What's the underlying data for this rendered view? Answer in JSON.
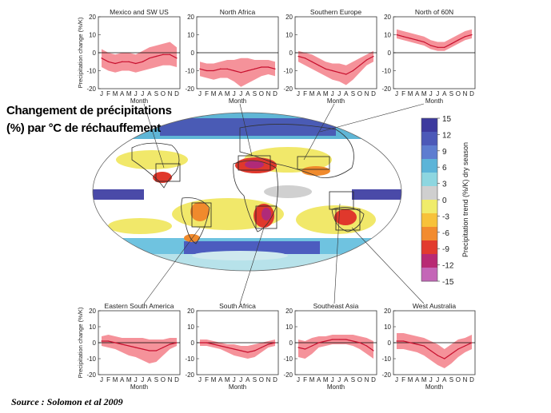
{
  "headline_line1": "Changement de précipitations",
  "headline_line2": "(%) par °C de réchauffement",
  "source": "Source : Solomon et al 2009",
  "colors": {
    "band": "#f4868f",
    "line": "#c8102e",
    "zero": "#000000"
  },
  "chart_data": [
    {
      "type": "line",
      "title": "Mexico and SW US",
      "xlabel": "Month",
      "ylabel": "Precipitation change (%/K)",
      "x": [
        "J",
        "F",
        "M",
        "A",
        "M",
        "J",
        "J",
        "A",
        "S",
        "O",
        "N",
        "D"
      ],
      "ylim": [
        -20,
        20
      ],
      "yticks": [
        -20,
        -10,
        0,
        10,
        20
      ],
      "series": [
        {
          "values": [
            -3,
            -5,
            -6,
            -5,
            -5,
            -6,
            -5,
            -3,
            -2,
            -1,
            -1,
            -3
          ],
          "lower": [
            -8,
            -10,
            -11,
            -10,
            -10,
            -11,
            -10,
            -9,
            -8,
            -7,
            -7,
            -8
          ],
          "upper": [
            2,
            0,
            -1,
            0,
            0,
            -1,
            1,
            3,
            4,
            5,
            6,
            3
          ]
        }
      ]
    },
    {
      "type": "line",
      "title": "North Africa",
      "xlabel": "Month",
      "ylabel": "",
      "x": [
        "J",
        "F",
        "M",
        "A",
        "M",
        "J",
        "J",
        "A",
        "S",
        "O",
        "N",
        "D"
      ],
      "ylim": [
        -20,
        20
      ],
      "yticks": [
        -20,
        -10,
        0,
        10,
        20
      ],
      "series": [
        {
          "values": [
            -9,
            -10,
            -10,
            -9,
            -9,
            -10,
            -11,
            -10,
            -9,
            -8,
            -8,
            -9
          ],
          "lower": [
            -13,
            -14,
            -15,
            -14,
            -14,
            -16,
            -19,
            -17,
            -15,
            -13,
            -12,
            -13
          ],
          "upper": [
            -5,
            -6,
            -6,
            -5,
            -4,
            -4,
            -3,
            -3,
            -4,
            -4,
            -4,
            -5
          ]
        }
      ]
    },
    {
      "type": "line",
      "title": "Southern Europe",
      "xlabel": "Month",
      "ylabel": "",
      "x": [
        "J",
        "F",
        "M",
        "A",
        "M",
        "J",
        "J",
        "A",
        "S",
        "O",
        "N",
        "D"
      ],
      "ylim": [
        -20,
        20
      ],
      "yticks": [
        -20,
        -10,
        0,
        10,
        20
      ],
      "series": [
        {
          "values": [
            -2,
            -3,
            -5,
            -7,
            -9,
            -10,
            -11,
            -12,
            -10,
            -7,
            -4,
            -2
          ],
          "lower": [
            -5,
            -7,
            -9,
            -11,
            -13,
            -15,
            -16,
            -18,
            -15,
            -11,
            -7,
            -5
          ],
          "upper": [
            1,
            0,
            -1,
            -3,
            -5,
            -6,
            -6,
            -7,
            -5,
            -3,
            -1,
            1
          ]
        }
      ]
    },
    {
      "type": "line",
      "title": "North of 60N",
      "xlabel": "Month",
      "ylabel": "",
      "x": [
        "J",
        "F",
        "M",
        "A",
        "M",
        "J",
        "J",
        "A",
        "S",
        "O",
        "N",
        "D"
      ],
      "ylim": [
        -20,
        20
      ],
      "yticks": [
        -20,
        -10,
        0,
        10,
        20
      ],
      "series": [
        {
          "values": [
            10,
            9,
            8,
            7,
            6,
            4,
            3,
            3,
            5,
            7,
            9,
            10
          ],
          "lower": [
            8,
            7,
            6,
            5,
            4,
            2,
            1,
            1,
            3,
            5,
            7,
            8
          ],
          "upper": [
            13,
            12,
            11,
            10,
            9,
            7,
            6,
            6,
            8,
            10,
            12,
            13
          ]
        }
      ]
    },
    {
      "type": "line",
      "title": "Eastern South America",
      "xlabel": "Month",
      "ylabel": "Precipitation change (%/K)",
      "x": [
        "J",
        "F",
        "M",
        "A",
        "M",
        "J",
        "J",
        "A",
        "S",
        "O",
        "N",
        "D"
      ],
      "ylim": [
        -20,
        20
      ],
      "yticks": [
        -20,
        -10,
        0,
        10,
        20
      ],
      "series": [
        {
          "values": [
            1,
            1,
            0,
            -1,
            -2,
            -3,
            -4,
            -5,
            -5,
            -3,
            -1,
            0
          ],
          "lower": [
            -2,
            -3,
            -4,
            -6,
            -8,
            -9,
            -11,
            -13,
            -12,
            -8,
            -4,
            -2
          ],
          "upper": [
            4,
            5,
            4,
            3,
            3,
            3,
            3,
            2,
            2,
            2,
            3,
            3
          ]
        }
      ]
    },
    {
      "type": "line",
      "title": "South Africa",
      "xlabel": "Month",
      "ylabel": "",
      "x": [
        "J",
        "F",
        "M",
        "A",
        "M",
        "J",
        "J",
        "A",
        "S",
        "O",
        "N",
        "D"
      ],
      "ylim": [
        -20,
        20
      ],
      "yticks": [
        -20,
        -10,
        0,
        10,
        20
      ],
      "series": [
        {
          "values": [
            0,
            0,
            -1,
            -2,
            -3,
            -4,
            -5,
            -6,
            -5,
            -3,
            -1,
            0
          ],
          "lower": [
            -2,
            -2,
            -3,
            -4,
            -6,
            -8,
            -9,
            -10,
            -9,
            -6,
            -3,
            -2
          ],
          "upper": [
            2,
            2,
            1,
            0,
            -1,
            -1,
            -2,
            -2,
            -1,
            0,
            1,
            2
          ]
        }
      ]
    },
    {
      "type": "line",
      "title": "Southeast Asia",
      "xlabel": "Month",
      "ylabel": "",
      "x": [
        "J",
        "F",
        "M",
        "A",
        "M",
        "J",
        "J",
        "A",
        "S",
        "O",
        "N",
        "D"
      ],
      "ylim": [
        -20,
        20
      ],
      "yticks": [
        -20,
        -10,
        0,
        10,
        20
      ],
      "series": [
        {
          "values": [
            -3,
            -4,
            -2,
            0,
            1,
            2,
            2,
            2,
            1,
            0,
            -2,
            -5
          ],
          "lower": [
            -9,
            -10,
            -7,
            -3,
            -2,
            -1,
            -1,
            -1,
            -2,
            -4,
            -7,
            -10
          ],
          "upper": [
            2,
            1,
            3,
            4,
            4,
            5,
            5,
            5,
            5,
            4,
            3,
            1
          ]
        }
      ]
    },
    {
      "type": "line",
      "title": "West Australia",
      "xlabel": "Month",
      "ylabel": "",
      "x": [
        "J",
        "F",
        "M",
        "A",
        "M",
        "J",
        "J",
        "A",
        "S",
        "O",
        "N",
        "D"
      ],
      "ylim": [
        -20,
        20
      ],
      "yticks": [
        -20,
        -10,
        0,
        10,
        20
      ],
      "series": [
        {
          "values": [
            1,
            1,
            0,
            -1,
            -2,
            -5,
            -8,
            -10,
            -7,
            -4,
            -2,
            0
          ],
          "lower": [
            -4,
            -4,
            -5,
            -6,
            -8,
            -11,
            -14,
            -16,
            -13,
            -9,
            -6,
            -4
          ],
          "upper": [
            6,
            6,
            5,
            4,
            3,
            1,
            -1,
            -4,
            -1,
            2,
            3,
            5
          ]
        }
      ]
    },
    {
      "type": "heatmap",
      "title": "",
      "colorbar_label": "Precipitation trend (%/K) dry season",
      "colorbar_ticks": [
        15,
        12,
        9,
        6,
        3,
        0,
        -3,
        -6,
        -9,
        -12,
        -15
      ],
      "colorbar_colors": [
        "#3d3a9e",
        "#4c59b8",
        "#5d7dd0",
        "#5cb4d8",
        "#8dd6e0",
        "#cfcfcf",
        "#f0ec6a",
        "#f7c23a",
        "#f28b2f",
        "#e23b2e",
        "#b82a74",
        "#c466b7"
      ]
    }
  ]
}
